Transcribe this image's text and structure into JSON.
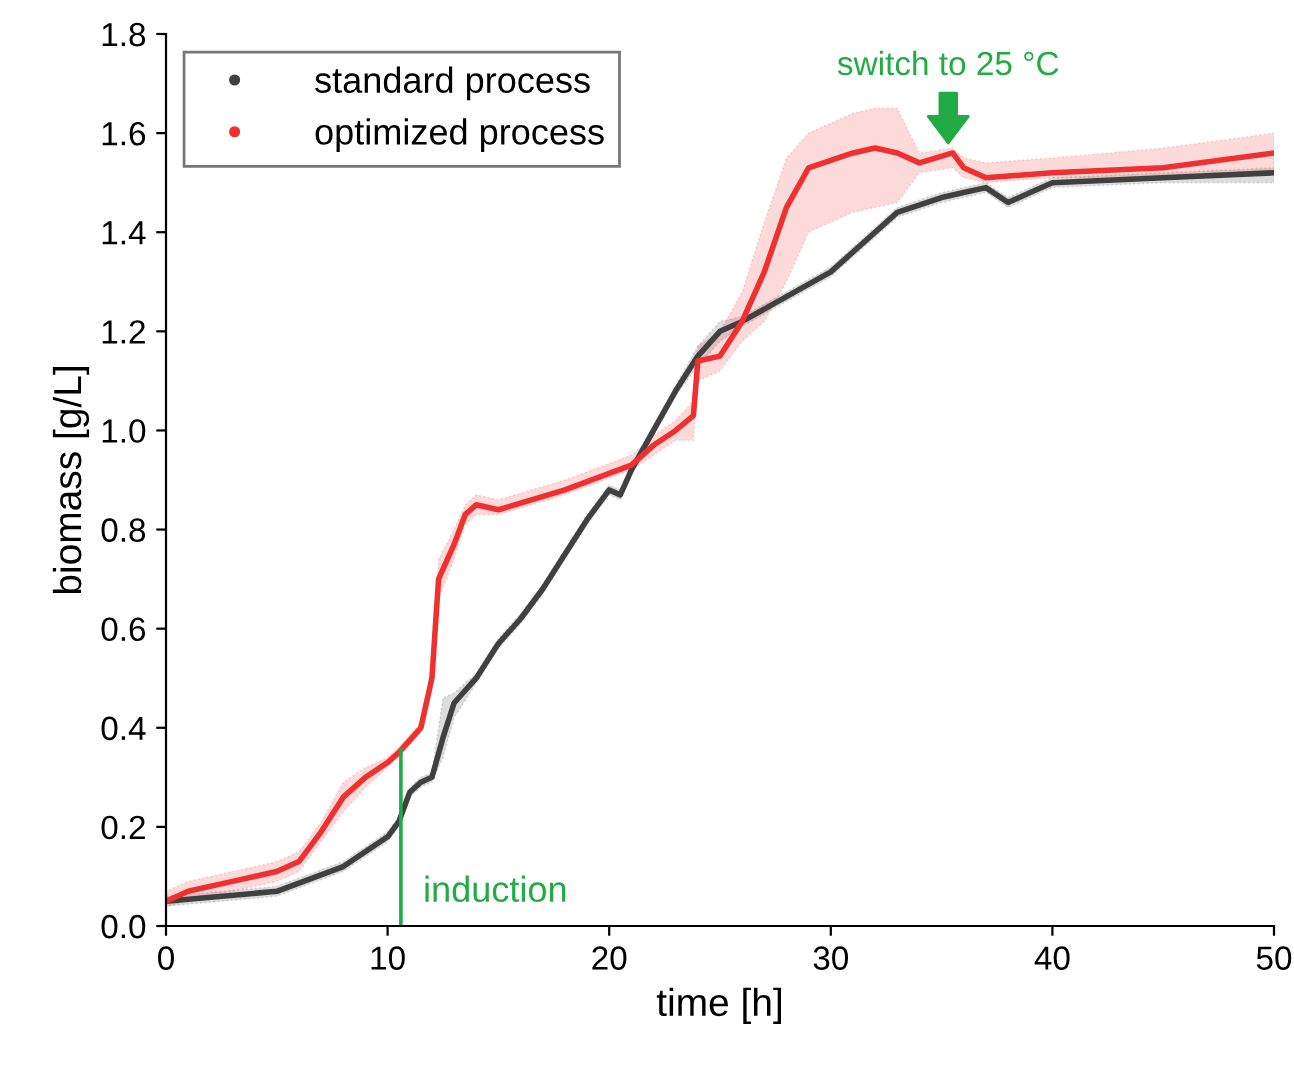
{
  "chart_data": {
    "type": "line",
    "xlabel": "time [h]",
    "ylabel": "biomass [g/L]",
    "xlim": [
      0,
      50
    ],
    "xticks": [
      0,
      10,
      20,
      30,
      40,
      50
    ],
    "ylim": [
      0,
      1.8
    ],
    "yticks": [
      {
        "value": 0,
        "label": "0.0"
      },
      0.2,
      0.4,
      0.6,
      0.8,
      {
        "value": 1,
        "label": "1.0"
      },
      1.2,
      1.4,
      1.6,
      1.8
    ],
    "grid": false,
    "legend": "top left",
    "line_style": "solid",
    "series": [
      {
        "name": "standard process",
        "color": "#404040",
        "x": [
          0,
          5,
          8,
          10,
          10.5,
          11,
          11.5,
          12,
          12.5,
          13,
          14,
          15,
          16,
          17,
          18,
          19,
          20,
          20.5,
          21,
          22,
          23,
          24,
          25,
          26,
          28,
          30,
          31,
          32,
          33,
          35,
          36,
          37,
          38,
          39,
          40,
          45,
          50
        ],
        "values": [
          0.05,
          0.07,
          0.12,
          0.18,
          0.21,
          0.27,
          0.29,
          0.3,
          0.38,
          0.45,
          0.5,
          0.57,
          0.62,
          0.68,
          0.75,
          0.82,
          0.88,
          0.87,
          0.92,
          1.0,
          1.08,
          1.15,
          1.2,
          1.22,
          1.27,
          1.32,
          1.36,
          1.4,
          1.44,
          1.47,
          1.48,
          1.49,
          1.46,
          1.48,
          1.5,
          1.51,
          1.52
        ],
        "lower": [
          0.04,
          0.06,
          0.11,
          0.17,
          0.2,
          0.26,
          0.28,
          0.29,
          0.34,
          0.42,
          0.49,
          0.56,
          0.61,
          0.67,
          0.74,
          0.81,
          0.87,
          0.86,
          0.91,
          0.99,
          1.07,
          1.13,
          1.18,
          1.21,
          1.26,
          1.31,
          1.35,
          1.39,
          1.43,
          1.46,
          1.47,
          1.48,
          1.45,
          1.47,
          1.49,
          1.5,
          1.5
        ],
        "upper": [
          0.06,
          0.08,
          0.13,
          0.19,
          0.22,
          0.28,
          0.3,
          0.31,
          0.46,
          0.47,
          0.51,
          0.58,
          0.63,
          0.69,
          0.76,
          0.83,
          0.89,
          0.88,
          0.93,
          1.01,
          1.09,
          1.17,
          1.22,
          1.23,
          1.28,
          1.33,
          1.37,
          1.41,
          1.45,
          1.48,
          1.49,
          1.5,
          1.47,
          1.49,
          1.51,
          1.52,
          1.53
        ]
      },
      {
        "name": "optimized process",
        "color": "#f03030",
        "x": [
          0,
          1,
          3,
          5,
          6,
          7,
          8,
          9,
          10,
          10.5,
          11.5,
          12,
          12.3,
          13,
          13.5,
          14,
          15,
          18,
          21,
          22,
          23,
          23.8,
          24,
          25,
          26,
          27,
          28,
          29,
          31,
          32,
          33,
          34,
          35.5,
          36,
          37,
          40,
          45,
          50
        ],
        "values": [
          0.05,
          0.07,
          0.09,
          0.11,
          0.13,
          0.19,
          0.26,
          0.3,
          0.33,
          0.35,
          0.4,
          0.5,
          0.7,
          0.77,
          0.83,
          0.85,
          0.84,
          0.88,
          0.93,
          0.97,
          1.0,
          1.03,
          1.14,
          1.15,
          1.22,
          1.32,
          1.45,
          1.53,
          1.56,
          1.57,
          1.56,
          1.54,
          1.56,
          1.53,
          1.51,
          1.52,
          1.53,
          1.56
        ],
        "lower": [
          0.04,
          0.05,
          0.07,
          0.09,
          0.11,
          0.17,
          0.23,
          0.28,
          0.32,
          0.34,
          0.39,
          0.48,
          0.66,
          0.74,
          0.81,
          0.83,
          0.83,
          0.87,
          0.92,
          0.95,
          0.98,
          0.98,
          1.1,
          1.12,
          1.18,
          1.22,
          1.3,
          1.4,
          1.44,
          1.45,
          1.46,
          1.52,
          1.53,
          1.51,
          1.5,
          1.51,
          1.51,
          1.52
        ],
        "upper": [
          0.07,
          0.09,
          0.11,
          0.13,
          0.15,
          0.21,
          0.29,
          0.32,
          0.34,
          0.36,
          0.41,
          0.52,
          0.74,
          0.8,
          0.85,
          0.87,
          0.86,
          0.9,
          0.95,
          0.99,
          1.02,
          1.06,
          1.17,
          1.2,
          1.28,
          1.42,
          1.55,
          1.6,
          1.64,
          1.65,
          1.65,
          1.56,
          1.57,
          1.55,
          1.54,
          1.55,
          1.57,
          1.6
        ]
      }
    ],
    "ref_lines": [
      {
        "axis": "x",
        "value": 10.6,
        "label": "induction",
        "color": "#22aa44"
      }
    ],
    "annotations": [
      {
        "text": "switch to 25 °C",
        "x": 35.3,
        "y": 1.58
      }
    ]
  }
}
